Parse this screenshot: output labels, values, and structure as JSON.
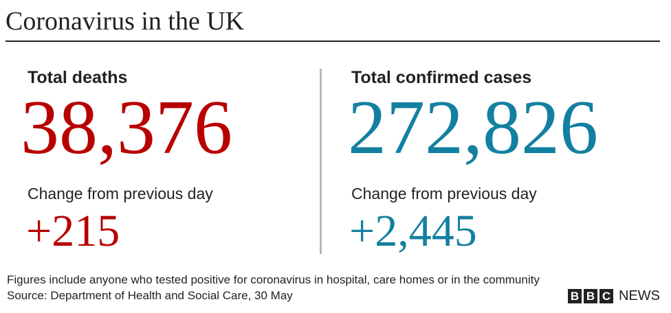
{
  "title": "Coronavirus in the UK",
  "panels": [
    {
      "label": "Total deaths",
      "total": "38,376",
      "change_label": "Change from previous day",
      "change": "+215"
    },
    {
      "label": "Total confirmed cases",
      "total": "272,826",
      "change_label": "Change from previous day",
      "change": "+2,445"
    }
  ],
  "footnotes": [
    "Figures include anyone who tested positive for coronavirus in hospital, care homes or in the community",
    "Source: Department of Health and Social Care, 30 May"
  ],
  "logo": {
    "boxes": [
      "B",
      "B",
      "C"
    ],
    "text": "NEWS"
  }
}
